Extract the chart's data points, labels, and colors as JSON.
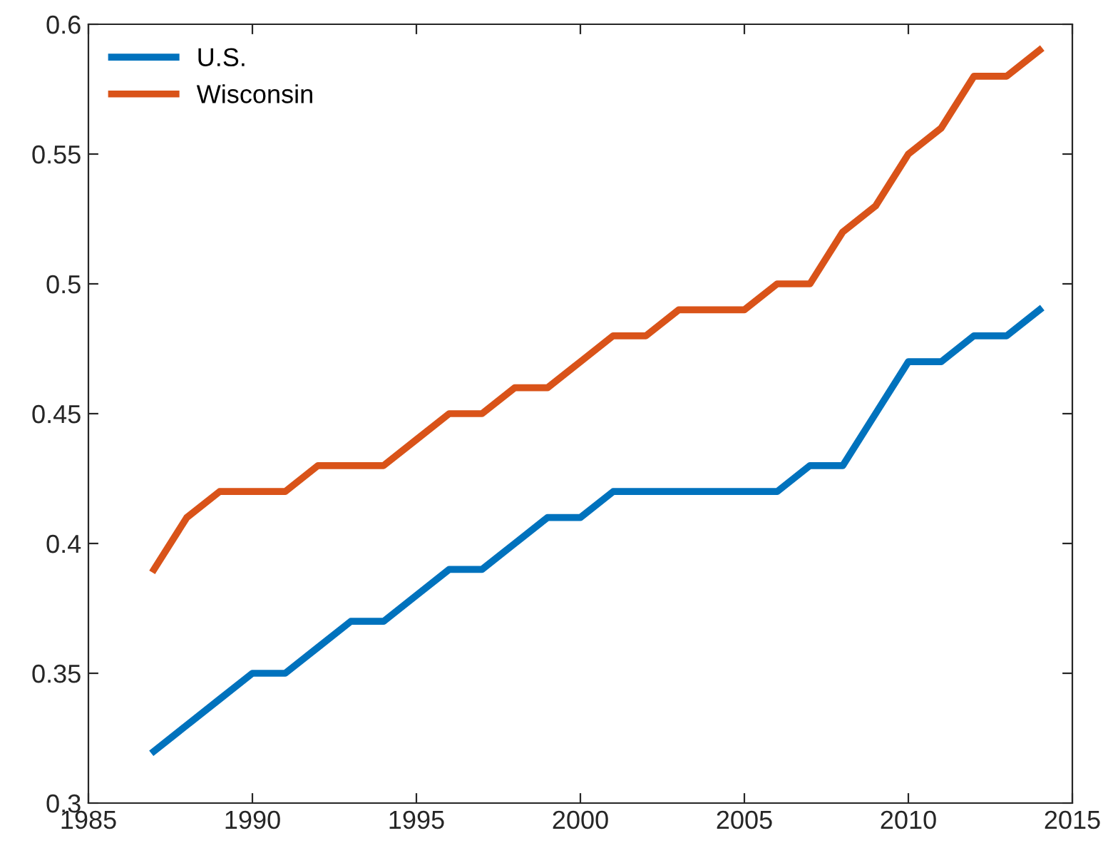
{
  "chart_data": {
    "type": "line",
    "x": [
      1987,
      1988,
      1989,
      1990,
      1991,
      1992,
      1993,
      1994,
      1995,
      1996,
      1997,
      1998,
      1999,
      2000,
      2001,
      2002,
      2003,
      2004,
      2005,
      2006,
      2007,
      2008,
      2009,
      2010,
      2011,
      2012,
      2013,
      2014
    ],
    "series": [
      {
        "name": "U.S.",
        "color": "#0072bd",
        "values": [
          0.32,
          0.33,
          0.34,
          0.35,
          0.35,
          0.36,
          0.37,
          0.37,
          0.38,
          0.39,
          0.39,
          0.4,
          0.41,
          0.41,
          0.42,
          0.42,
          0.42,
          0.42,
          0.42,
          0.42,
          0.43,
          0.43,
          0.45,
          0.47,
          0.47,
          0.48,
          0.48,
          0.49
        ]
      },
      {
        "name": "Wisconsin",
        "color": "#d95319",
        "values": [
          0.39,
          0.41,
          0.42,
          0.42,
          0.42,
          0.43,
          0.43,
          0.43,
          0.44,
          0.45,
          0.45,
          0.46,
          0.46,
          0.47,
          0.48,
          0.48,
          0.49,
          0.49,
          0.49,
          0.5,
          0.5,
          0.52,
          0.53,
          0.55,
          0.56,
          0.58,
          0.58,
          0.59
        ]
      }
    ],
    "xlim": [
      1985,
      2015
    ],
    "xticks": [
      1985,
      1990,
      1995,
      2000,
      2005,
      2010,
      2015
    ],
    "ylim": [
      0.3,
      0.6
    ],
    "yticks": [
      0.3,
      0.35,
      0.4,
      0.45,
      0.5,
      0.55,
      0.6
    ],
    "grid": false,
    "legend": "top left",
    "marker": "none",
    "line_style": "solid"
  }
}
